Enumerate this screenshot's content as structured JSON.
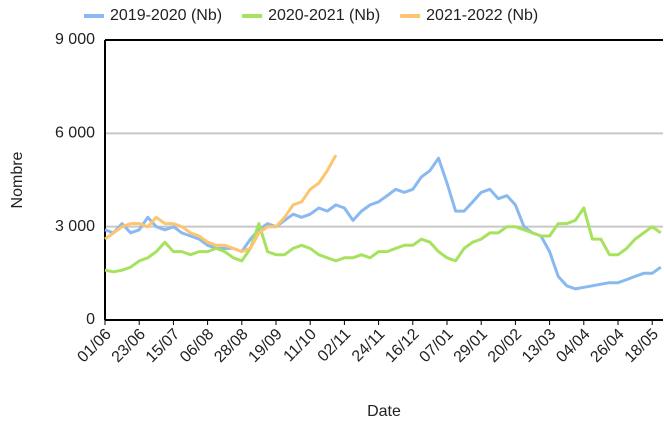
{
  "chart_data": {
    "type": "line",
    "x_label": "Date",
    "y_label": "Nombre",
    "categories": [
      "01/06",
      null,
      null,
      null,
      "23/06",
      null,
      null,
      null,
      "15/07",
      null,
      null,
      null,
      "06/08",
      null,
      null,
      null,
      "28/08",
      null,
      null,
      null,
      "19/09",
      null,
      null,
      null,
      "11/10",
      null,
      null,
      null,
      "02/11",
      null,
      null,
      null,
      "24/11",
      null,
      null,
      null,
      "16/12",
      null,
      null,
      null,
      "07/01",
      null,
      null,
      null,
      "29/01",
      null,
      null,
      null,
      "20/02",
      null,
      null,
      null,
      "13/03",
      null,
      null,
      null,
      "04/04",
      null,
      null,
      null,
      "26/04",
      null,
      null,
      null,
      "18/05",
      null
    ],
    "series": [
      {
        "name": "2019-2020 (Nb)",
        "color": "#8ab8f0",
        "values": [
          2900,
          2800,
          3100,
          2800,
          2900,
          3300,
          3000,
          2900,
          3000,
          2800,
          2700,
          2600,
          2400,
          2300,
          2300,
          2300,
          2200,
          2600,
          2900,
          3100,
          3000,
          3200,
          3400,
          3300,
          3400,
          3600,
          3500,
          3700,
          3600,
          3200,
          3500,
          3700,
          3800,
          4000,
          4200,
          4100,
          4200,
          4600,
          4800,
          5200,
          4400,
          3500,
          3500,
          3800,
          4100,
          4200,
          3900,
          4000,
          3700,
          3000,
          2800,
          2700,
          2200,
          1400,
          1100,
          1000,
          1050,
          1100,
          1150,
          1200,
          1200,
          1300,
          1400,
          1500,
          1500,
          1700
        ]
      },
      {
        "name": "2020-2021 (Nb)",
        "color": "#a6e25e",
        "values": [
          1600,
          1550,
          1600,
          1700,
          1900,
          2000,
          2200,
          2500,
          2200,
          2200,
          2100,
          2200,
          2200,
          2300,
          2200,
          2000,
          1900,
          2300,
          3100,
          2200,
          2100,
          2100,
          2300,
          2400,
          2300,
          2100,
          2000,
          1900,
          2000,
          2000,
          2100,
          2000,
          2200,
          2200,
          2300,
          2400,
          2400,
          2600,
          2500,
          2200,
          2000,
          1900,
          2300,
          2500,
          2600,
          2800,
          2800,
          3000,
          3000,
          2900,
          2800,
          2700,
          2700,
          3100,
          3100,
          3200,
          3600,
          2600,
          2600,
          2100,
          2100,
          2300,
          2600,
          2800,
          3000,
          2800
        ]
      },
      {
        "name": "2021-2022 (Nb)",
        "color": "#ffc56e",
        "values": [
          2600,
          2800,
          3000,
          3100,
          3100,
          3000,
          3300,
          3100,
          3100,
          3000,
          2800,
          2700,
          2500,
          2400,
          2400,
          2300,
          2200,
          2300,
          2800,
          3000,
          3000,
          3300,
          3700,
          3800,
          4200,
          4400,
          4800,
          5300,
          null,
          null,
          null,
          null,
          null,
          null,
          null,
          null,
          null,
          null,
          null,
          null,
          null,
          null,
          null,
          null,
          null,
          null,
          null,
          null,
          null,
          null,
          null,
          null,
          null,
          null,
          null,
          null,
          null,
          null,
          null,
          null,
          null,
          null,
          null,
          null,
          null,
          null
        ]
      }
    ],
    "ylim": [
      0,
      9000
    ],
    "yticks": [
      0,
      {
        "value": 3000,
        "label": "3 000"
      },
      {
        "value": 6000,
        "label": "6 000"
      },
      {
        "value": 9000,
        "label": "9 000"
      }
    ],
    "grid": true
  }
}
